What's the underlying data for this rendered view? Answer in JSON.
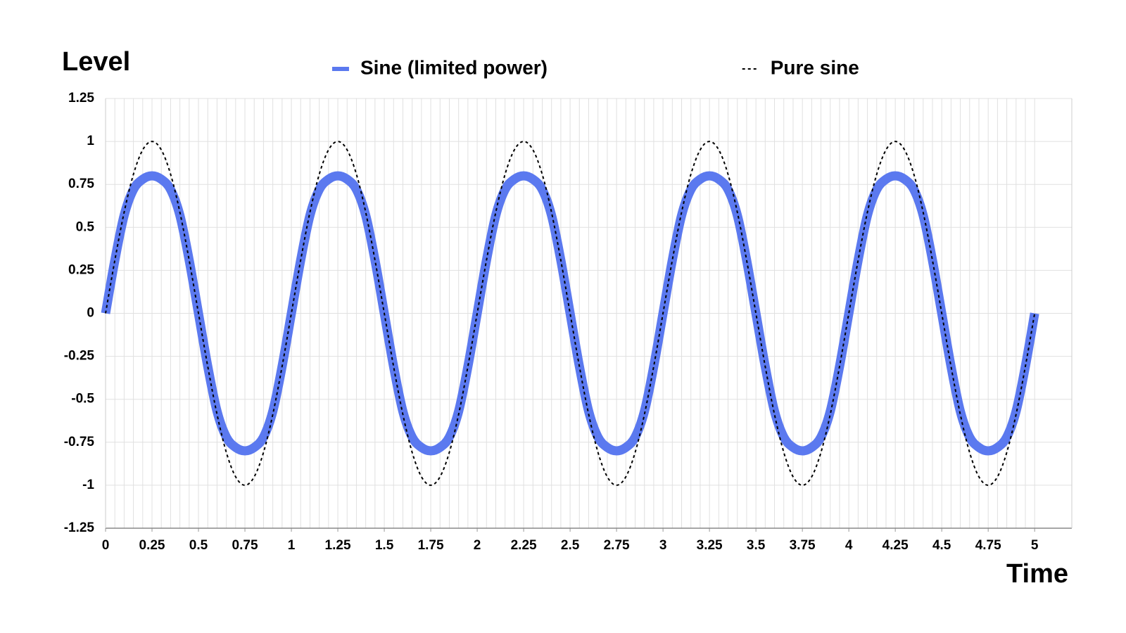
{
  "chart_data": {
    "type": "line",
    "y_label": "Level",
    "x_label": "Time",
    "x": [
      0,
      0.05,
      0.1,
      0.15,
      0.2,
      0.25,
      0.3,
      0.35,
      0.4,
      0.45,
      0.5,
      0.55,
      0.6,
      0.65,
      0.7,
      0.75,
      0.8,
      0.85,
      0.9,
      0.95,
      1,
      1.05,
      1.1,
      1.15,
      1.2,
      1.25,
      1.3,
      1.35,
      1.4,
      1.45,
      1.5,
      1.55,
      1.6,
      1.65,
      1.7,
      1.75,
      1.8,
      1.85,
      1.9,
      1.95,
      2,
      2.05,
      2.1,
      2.15,
      2.2,
      2.25,
      2.3,
      2.35,
      2.4,
      2.45,
      2.5,
      2.55,
      2.6,
      2.65,
      2.7,
      2.75,
      2.8,
      2.85,
      2.9,
      2.95,
      3,
      3.05,
      3.1,
      3.15,
      3.2,
      3.25,
      3.3,
      3.35,
      3.4,
      3.45,
      3.5,
      3.55,
      3.6,
      3.65,
      3.7,
      3.75,
      3.8,
      3.85,
      3.9,
      3.95,
      4,
      4.05,
      4.1,
      4.15,
      4.2,
      4.25,
      4.3,
      4.35,
      4.4,
      4.45,
      4.5,
      4.55,
      4.6,
      4.65,
      4.7,
      4.75,
      4.8,
      4.85,
      4.9,
      4.95,
      5
    ],
    "series": [
      {
        "name": "Sine (limited power)",
        "color": "#5b79ef",
        "style": "solid",
        "values": [
          0,
          0.309,
          0.57,
          0.72,
          0.78,
          0.8,
          0.78,
          0.72,
          0.57,
          0.309,
          0,
          -0.309,
          -0.57,
          -0.72,
          -0.78,
          -0.8,
          -0.78,
          -0.72,
          -0.57,
          -0.309,
          0,
          0.309,
          0.57,
          0.72,
          0.78,
          0.8,
          0.78,
          0.72,
          0.57,
          0.309,
          0,
          -0.309,
          -0.57,
          -0.72,
          -0.78,
          -0.8,
          -0.78,
          -0.72,
          -0.57,
          -0.309,
          0,
          0.309,
          0.57,
          0.72,
          0.78,
          0.8,
          0.78,
          0.72,
          0.57,
          0.309,
          0,
          -0.309,
          -0.57,
          -0.72,
          -0.78,
          -0.8,
          -0.78,
          -0.72,
          -0.57,
          -0.309,
          0,
          0.309,
          0.57,
          0.72,
          0.78,
          0.8,
          0.78,
          0.72,
          0.57,
          0.309,
          0,
          -0.309,
          -0.57,
          -0.72,
          -0.78,
          -0.8,
          -0.78,
          -0.72,
          -0.57,
          -0.309,
          0,
          0.309,
          0.57,
          0.72,
          0.78,
          0.8,
          0.78,
          0.72,
          0.57,
          0.309,
          0,
          -0.309,
          -0.57,
          -0.72,
          -0.78,
          -0.8,
          -0.78,
          -0.72,
          -0.57,
          -0.309,
          0
        ]
      },
      {
        "name": "Pure sine",
        "color": "#000000",
        "style": "dashed",
        "values": [
          0,
          0.309,
          0.588,
          0.809,
          0.951,
          1,
          0.951,
          0.809,
          0.588,
          0.309,
          0,
          -0.309,
          -0.588,
          -0.809,
          -0.951,
          -1,
          -0.951,
          -0.809,
          -0.588,
          -0.309,
          0,
          0.309,
          0.588,
          0.809,
          0.951,
          1,
          0.951,
          0.809,
          0.588,
          0.309,
          0,
          -0.309,
          -0.588,
          -0.809,
          -0.951,
          -1,
          -0.951,
          -0.809,
          -0.588,
          -0.309,
          0,
          0.309,
          0.588,
          0.809,
          0.951,
          1,
          0.951,
          0.809,
          0.588,
          0.309,
          0,
          -0.309,
          -0.588,
          -0.809,
          -0.951,
          -1,
          -0.951,
          -0.809,
          -0.588,
          -0.309,
          0,
          0.309,
          0.588,
          0.809,
          0.951,
          1,
          0.951,
          0.809,
          0.588,
          0.309,
          0,
          -0.309,
          -0.588,
          -0.809,
          -0.951,
          -1,
          -0.951,
          -0.809,
          -0.588,
          -0.309,
          0,
          0.309,
          0.588,
          0.809,
          0.951,
          1,
          0.951,
          0.809,
          0.588,
          0.309,
          0,
          -0.309,
          -0.588,
          -0.809,
          -0.951,
          -1,
          -0.951,
          -0.809,
          -0.588,
          -0.309,
          0
        ]
      }
    ],
    "xlim": [
      0,
      5.2
    ],
    "ylim": [
      -1.25,
      1.25
    ],
    "xticks": [
      0,
      0.25,
      0.5,
      0.75,
      1,
      1.25,
      1.5,
      1.75,
      2,
      2.25,
      2.5,
      2.75,
      3,
      3.25,
      3.5,
      3.75,
      4,
      4.25,
      4.5,
      4.75,
      5
    ],
    "yticks": [
      -1.25,
      -1,
      -0.75,
      -0.5,
      -0.25,
      0,
      0.25,
      0.5,
      0.75,
      1,
      1.25
    ],
    "grid": true,
    "minor_grid": true,
    "legend": "top"
  }
}
